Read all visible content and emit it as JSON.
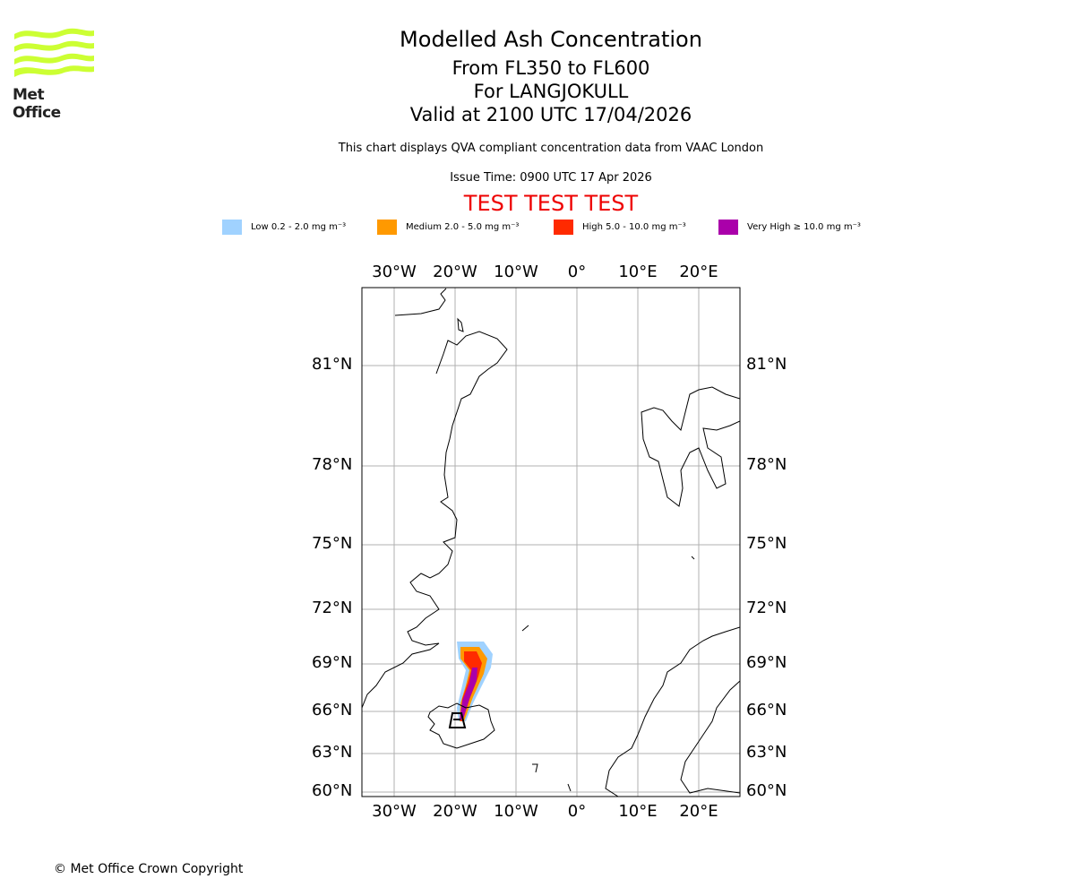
{
  "logo": {
    "text": "Met Office",
    "color": "#ccff33"
  },
  "header": {
    "title": "Modelled Ash Concentration",
    "levels": "From FL350 to FL600",
    "volcano": "For LANGJOKULL",
    "valid": "Valid at 2100 UTC 17/04/2026",
    "description": "This chart displays QVA compliant concentration data from VAAC London",
    "issue": "Issue Time: 0900 UTC 17 Apr 2026",
    "test_banner": "TEST TEST TEST"
  },
  "legend": [
    {
      "label": "Low 0.2 - 2.0 mg m⁻³",
      "color": "#a0d2ff"
    },
    {
      "label": "Medium 2.0 - 5.0 mg m⁻³",
      "color": "#ff9900"
    },
    {
      "label": "High 5.0 - 10.0 mg m⁻³",
      "color": "#ff2a00"
    },
    {
      "label": "Very High ≥ 10.0 mg m⁻³",
      "color": "#aa00aa"
    }
  ],
  "map": {
    "lon_labels": [
      "30°W",
      "20°W",
      "10°W",
      "0°",
      "10°E",
      "20°E"
    ],
    "lat_labels": [
      "81°N",
      "78°N",
      "75°N",
      "72°N",
      "69°N",
      "66°N",
      "63°N",
      "60°N"
    ]
  },
  "footer": {
    "copyright": "© Met Office Crown Copyright"
  }
}
